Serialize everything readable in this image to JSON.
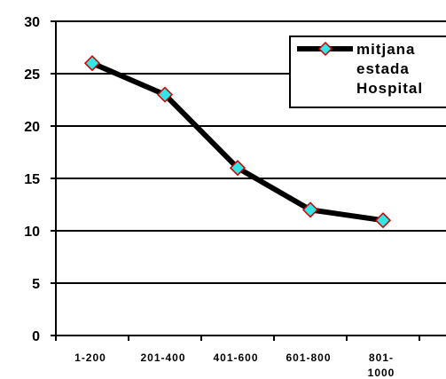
{
  "chart_data": {
    "type": "line",
    "title": "",
    "xlabel": "",
    "ylabel": "",
    "categories": [
      "1-200",
      "201-400",
      "401-600",
      "601-800",
      "801-1000"
    ],
    "category_lines": [
      [
        "1-200"
      ],
      [
        "201-400"
      ],
      [
        "401-600"
      ],
      [
        "601-800"
      ],
      [
        "801-",
        "1000"
      ]
    ],
    "ylim": [
      0,
      30
    ],
    "yticks": [
      0,
      5,
      10,
      15,
      20,
      25,
      30
    ],
    "grid": true,
    "legend_position": "top-right",
    "series": [
      {
        "name": "mitjana estada Hospital",
        "name_lines": [
          "mitjana",
          "estada",
          "Hospital"
        ],
        "values": [
          26,
          23,
          16,
          12,
          11
        ],
        "line_color": "#000000",
        "marker_fill": "#33e6e6",
        "marker_edge": "#cc0000"
      }
    ]
  }
}
